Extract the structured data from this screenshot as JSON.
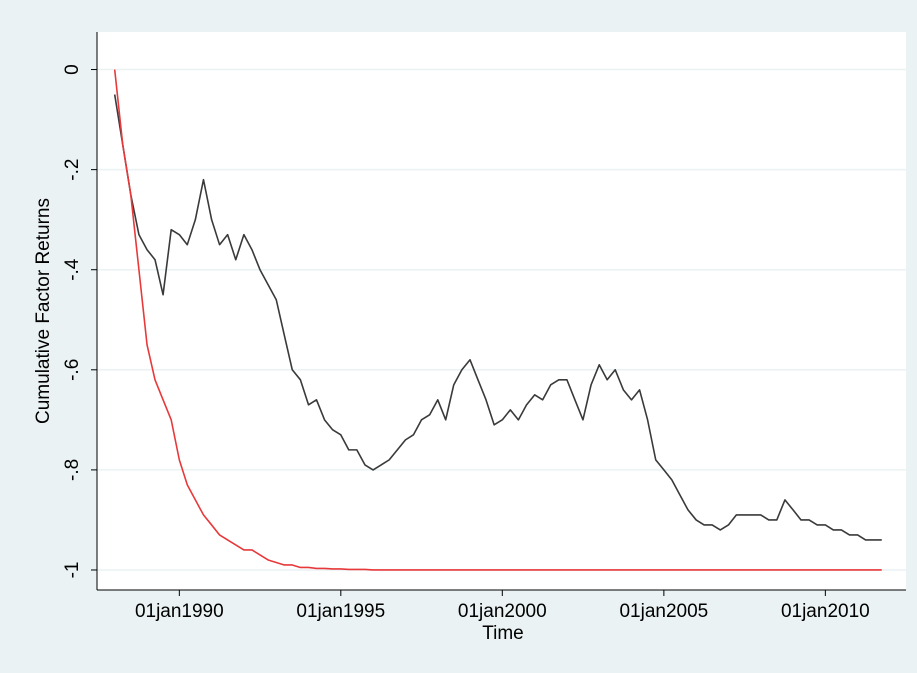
{
  "chart_data": {
    "type": "line",
    "x_label": "Time",
    "y_label": "Cumulative Factor Returns",
    "x": [
      "1988-01-01",
      "1988-04-01",
      "1988-07-01",
      "1988-10-01",
      "1989-01-01",
      "1989-04-01",
      "1989-07-01",
      "1989-10-01",
      "1990-01-01",
      "1990-04-01",
      "1990-07-01",
      "1990-10-01",
      "1991-01-01",
      "1991-04-01",
      "1991-07-01",
      "1991-10-01",
      "1992-01-01",
      "1992-04-01",
      "1992-07-01",
      "1992-10-01",
      "1993-01-01",
      "1993-04-01",
      "1993-07-01",
      "1993-10-01",
      "1994-01-01",
      "1994-04-01",
      "1994-07-01",
      "1994-10-01",
      "1995-01-01",
      "1995-04-01",
      "1995-07-01",
      "1995-10-01",
      "1996-01-01",
      "1996-04-01",
      "1996-07-01",
      "1996-10-01",
      "1997-01-01",
      "1997-04-01",
      "1997-07-01",
      "1997-10-01",
      "1998-01-01",
      "1998-04-01",
      "1998-07-01",
      "1998-10-01",
      "1999-01-01",
      "1999-04-01",
      "1999-07-01",
      "1999-10-01",
      "2000-01-01",
      "2000-04-01",
      "2000-07-01",
      "2000-10-01",
      "2001-01-01",
      "2001-04-01",
      "2001-07-01",
      "2001-10-01",
      "2002-01-01",
      "2002-04-01",
      "2002-07-01",
      "2002-10-01",
      "2003-01-01",
      "2003-04-01",
      "2003-07-01",
      "2003-10-01",
      "2004-01-01",
      "2004-04-01",
      "2004-07-01",
      "2004-10-01",
      "2005-01-01",
      "2005-04-01",
      "2005-07-01",
      "2005-10-01",
      "2006-01-01",
      "2006-04-01",
      "2006-07-01",
      "2006-10-01",
      "2007-01-01",
      "2007-04-01",
      "2007-07-01",
      "2007-10-01",
      "2008-01-01",
      "2008-04-01",
      "2008-07-01",
      "2008-10-01",
      "2009-01-01",
      "2009-04-01",
      "2009-07-01",
      "2009-10-01",
      "2010-01-01",
      "2010-04-01",
      "2010-07-01",
      "2010-10-01",
      "2011-01-01",
      "2011-04-01",
      "2011-07-01",
      "2011-10-01"
    ],
    "series": [
      {
        "color": "#3a3a3a",
        "values": [
          -0.05,
          -0.15,
          -0.25,
          -0.33,
          -0.36,
          -0.38,
          -0.45,
          -0.32,
          -0.33,
          -0.35,
          -0.3,
          -0.22,
          -0.3,
          -0.35,
          -0.33,
          -0.38,
          -0.33,
          -0.36,
          -0.4,
          -0.43,
          -0.46,
          -0.53,
          -0.6,
          -0.62,
          -0.67,
          -0.66,
          -0.7,
          -0.72,
          -0.73,
          -0.76,
          -0.76,
          -0.79,
          -0.8,
          -0.79,
          -0.78,
          -0.76,
          -0.74,
          -0.73,
          -0.7,
          -0.69,
          -0.66,
          -0.7,
          -0.63,
          -0.6,
          -0.58,
          -0.62,
          -0.66,
          -0.71,
          -0.7,
          -0.68,
          -0.7,
          -0.67,
          -0.65,
          -0.66,
          -0.63,
          -0.62,
          -0.62,
          -0.66,
          -0.7,
          -0.63,
          -0.59,
          -0.62,
          -0.6,
          -0.64,
          -0.66,
          -0.64,
          -0.7,
          -0.78,
          -0.8,
          -0.82,
          -0.85,
          -0.88,
          -0.9,
          -0.91,
          -0.91,
          -0.92,
          -0.91,
          -0.89,
          -0.89,
          -0.89,
          -0.89,
          -0.9,
          -0.9,
          -0.86,
          -0.88,
          -0.9,
          -0.9,
          -0.91,
          -0.91,
          -0.92,
          -0.92,
          -0.93,
          -0.93,
          -0.94,
          -0.94,
          -0.94
        ]
      },
      {
        "color": "#e8393a",
        "values": [
          0.0,
          -0.15,
          -0.25,
          -0.4,
          -0.55,
          -0.62,
          -0.66,
          -0.7,
          -0.78,
          -0.83,
          -0.86,
          -0.89,
          -0.91,
          -0.93,
          -0.94,
          -0.95,
          -0.96,
          -0.96,
          -0.97,
          -0.98,
          -0.985,
          -0.99,
          -0.99,
          -0.995,
          -0.995,
          -0.997,
          -0.997,
          -0.998,
          -0.998,
          -0.999,
          -0.999,
          -0.999,
          -1,
          -1,
          -1,
          -1,
          -1,
          -1,
          -1,
          -1,
          -1,
          -1,
          -1,
          -1,
          -1,
          -1,
          -1,
          -1,
          -1,
          -1,
          -1,
          -1,
          -1,
          -1,
          -1,
          -1,
          -1,
          -1,
          -1,
          -1,
          -1,
          -1,
          -1,
          -1,
          -1,
          -1,
          -1,
          -1,
          -1,
          -1,
          -1,
          -1,
          -1,
          -1,
          -1,
          -1,
          -1,
          -1,
          -1,
          -1,
          -1,
          -1,
          -1,
          -1,
          -1,
          -1,
          -1,
          -1,
          -1,
          -1,
          -1,
          -1,
          -1,
          -1,
          -1,
          -1
        ]
      }
    ],
    "xlim": [
      "1987-06-15",
      "2012-07-01"
    ],
    "xticks": [
      {
        "value": "1990-01-01",
        "label": "01jan1990"
      },
      {
        "value": "1995-01-01",
        "label": "01jan1995"
      },
      {
        "value": "2000-01-01",
        "label": "01jan2000"
      },
      {
        "value": "2005-01-01",
        "label": "01jan2005"
      },
      {
        "value": "2010-01-01",
        "label": "01jan2010"
      }
    ],
    "ylim": [
      -1.04,
      0.075
    ],
    "yticks": [
      0,
      {
        "value": -0.2,
        "label": "-.2"
      },
      {
        "value": -0.4,
        "label": "-.4"
      },
      {
        "value": -0.6,
        "label": "-.6"
      },
      {
        "value": -0.8,
        "label": "-.8"
      },
      -1
    ],
    "grid": true
  }
}
